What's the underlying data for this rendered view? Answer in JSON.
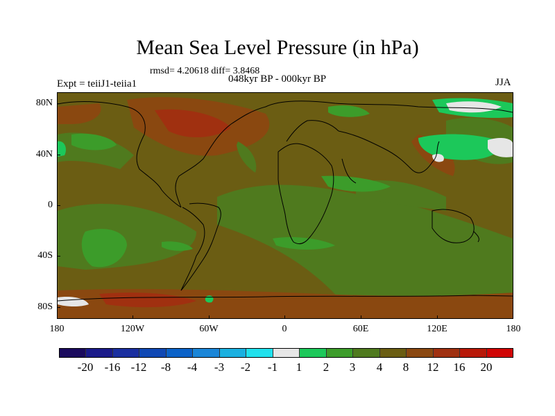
{
  "title": "Mean Sea Level Pressure (in hPa)",
  "stats": "rmsd= 4.20618 diff= 3.8468",
  "period": "048kyr BP - 000kyr BP",
  "experiment": "Expt = teiiJ1-teiia1",
  "season": "JJA",
  "lat_labels": [
    "80N",
    "40N",
    "0",
    "40S",
    "80S"
  ],
  "lon_labels": [
    "180",
    "120W",
    "60W",
    "0",
    "60E",
    "120E",
    "180"
  ],
  "colorbar": {
    "labels": [
      "-20",
      "-16",
      "-12",
      "-8",
      "-4",
      "-3",
      "-2",
      "-1",
      "1",
      "2",
      "3",
      "4",
      "8",
      "12",
      "16",
      "20"
    ],
    "colors": [
      "#1a0a5e",
      "#1a1a8a",
      "#1a2fa0",
      "#0f48b4",
      "#0a62c8",
      "#1a86d8",
      "#1ab0e0",
      "#20e0ec",
      "#e6e6e6",
      "#1cc85a",
      "#3c9c2a",
      "#4f7a1e",
      "#6a5d12",
      "#8a4810",
      "#a03010",
      "#b81808",
      "#d00404"
    ]
  },
  "palette": {
    "base": "#6b5d13",
    "olive": "#4f7a1e",
    "green": "#3c9c2a",
    "bright_green": "#1cc85a",
    "white": "#e6e6e6",
    "brown": "#8a4810",
    "red": "#a03010"
  }
}
